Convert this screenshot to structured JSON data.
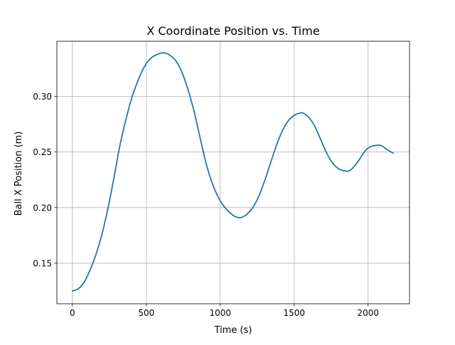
{
  "chart_data": {
    "type": "line",
    "title": "X Coordinate Position vs. Time",
    "xlabel": "Time (s)",
    "ylabel": "Ball X Position (m)",
    "xlim": [
      -105,
      2280
    ],
    "ylim": [
      0.1135,
      0.3496
    ],
    "grid": true,
    "xticks": [
      0,
      500,
      1000,
      1500,
      2000
    ],
    "xtick_labels": [
      "0",
      "500",
      "1000",
      "1500",
      "2000"
    ],
    "yticks": [
      0.15,
      0.2,
      0.25,
      0.3
    ],
    "ytick_labels": [
      "0.15",
      "0.20",
      "0.25",
      "0.30"
    ],
    "series": [
      {
        "color": "#1f77b4",
        "x": [
          0,
          40,
          80,
          120,
          160,
          200,
          240,
          280,
          320,
          360,
          400,
          440,
          480,
          520,
          560,
          600,
          630,
          660,
          700,
          740,
          780,
          820,
          860,
          900,
          940,
          980,
          1020,
          1060,
          1100,
          1140,
          1180,
          1220,
          1260,
          1300,
          1340,
          1380,
          1420,
          1460,
          1500,
          1540,
          1560,
          1600,
          1640,
          1680,
          1720,
          1760,
          1800,
          1840,
          1870,
          1900,
          1940,
          1980,
          2020,
          2060,
          2080,
          2100,
          2130,
          2170
        ],
        "y": [
          0.125,
          0.127,
          0.133,
          0.144,
          0.158,
          0.176,
          0.199,
          0.226,
          0.255,
          0.278,
          0.298,
          0.313,
          0.325,
          0.333,
          0.337,
          0.339,
          0.339,
          0.337,
          0.332,
          0.322,
          0.307,
          0.288,
          0.265,
          0.242,
          0.224,
          0.211,
          0.202,
          0.196,
          0.192,
          0.191,
          0.194,
          0.2,
          0.21,
          0.224,
          0.24,
          0.256,
          0.269,
          0.278,
          0.283,
          0.285,
          0.285,
          0.281,
          0.273,
          0.261,
          0.249,
          0.24,
          0.235,
          0.233,
          0.233,
          0.236,
          0.243,
          0.251,
          0.255,
          0.256,
          0.256,
          0.255,
          0.252,
          0.249
        ]
      }
    ]
  }
}
